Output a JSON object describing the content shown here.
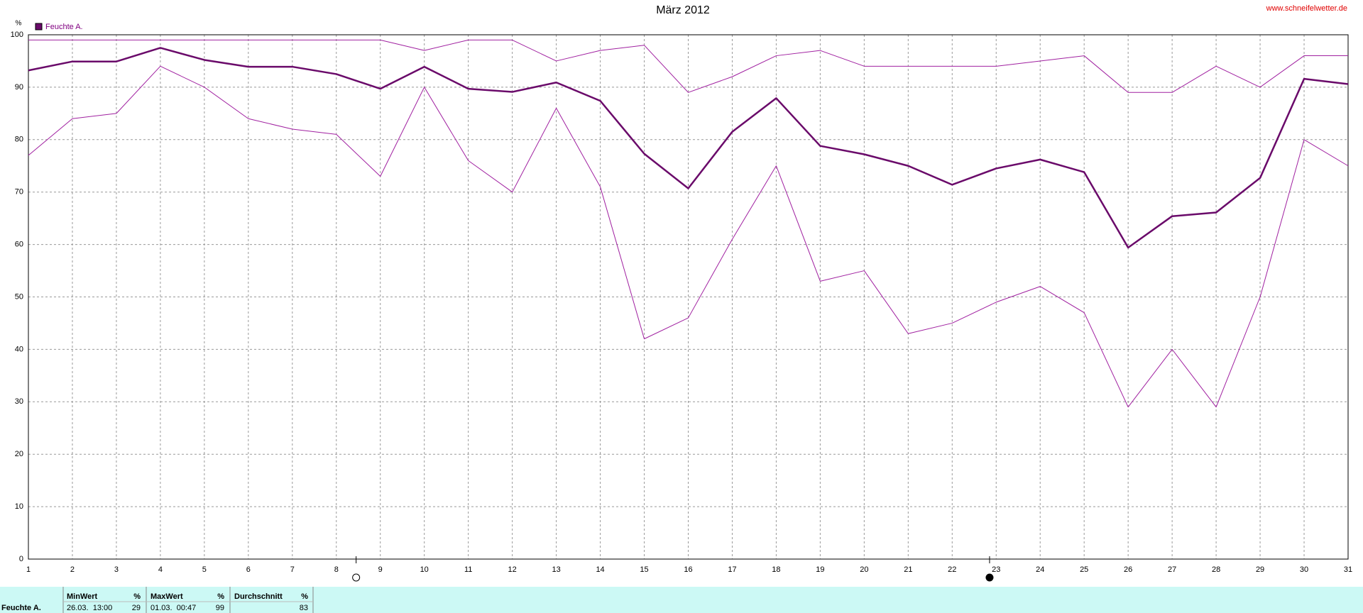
{
  "chart_data": {
    "type": "line",
    "title": "März 2012",
    "y_label": "%",
    "x": [
      1,
      2,
      3,
      4,
      5,
      6,
      7,
      8,
      9,
      10,
      11,
      12,
      13,
      14,
      15,
      16,
      17,
      18,
      19,
      20,
      21,
      22,
      23,
      24,
      25,
      26,
      27,
      28,
      29,
      30,
      31
    ],
    "series": [
      {
        "color": "#a020a0",
        "width": 1,
        "values": [
          99,
          99,
          99,
          99,
          99,
          99,
          99,
          99,
          99,
          97,
          99,
          99,
          95,
          97,
          98,
          89,
          92,
          96,
          97,
          94,
          94,
          94,
          94,
          95,
          96,
          89,
          89,
          94,
          90,
          96,
          96
        ]
      },
      {
        "name": "Feuchte A.",
        "color": "#6a0a6a",
        "width": 2.5,
        "values": [
          93.2,
          94.9,
          94.9,
          97.5,
          95.2,
          93.9,
          93.9,
          92.5,
          89.7,
          93.9,
          89.7,
          89.1,
          90.9,
          87.4,
          77.3,
          70.7,
          81.5,
          87.9,
          78.8,
          77.2,
          75,
          71.4,
          74.5,
          76.2,
          73.8,
          59.4,
          65.4,
          66.1,
          72.7,
          91.6,
          90.6
        ]
      },
      {
        "color": "#a020a0",
        "width": 1,
        "values": [
          77,
          84,
          85,
          94,
          90,
          84,
          82,
          81,
          73,
          90,
          76,
          70,
          86,
          71,
          42,
          46,
          61,
          75,
          53,
          55,
          43,
          45,
          49,
          52,
          47,
          29,
          40,
          29,
          50,
          80,
          75
        ]
      }
    ],
    "xlim": [
      1,
      31
    ],
    "xticks": [
      1,
      2,
      3,
      4,
      5,
      6,
      7,
      8,
      9,
      10,
      11,
      12,
      13,
      14,
      15,
      16,
      17,
      18,
      19,
      20,
      21,
      22,
      23,
      24,
      25,
      26,
      27,
      28,
      29,
      30,
      31
    ],
    "ylim": [
      0,
      100
    ],
    "yticks": [
      0,
      10,
      20,
      30,
      40,
      50,
      60,
      70,
      80,
      90,
      100
    ],
    "grid": true,
    "legend": "top-left"
  },
  "watermark": "www.schneifelwetter.de",
  "table": {
    "headers": [
      "MinWert",
      "%",
      "MaxWert",
      "%",
      "Durchschnitt",
      "%"
    ],
    "rows": [
      [
        "Feuchte A.",
        "26.03.  13:00",
        "29",
        "01.03.  00:47",
        "99",
        "83"
      ]
    ]
  }
}
